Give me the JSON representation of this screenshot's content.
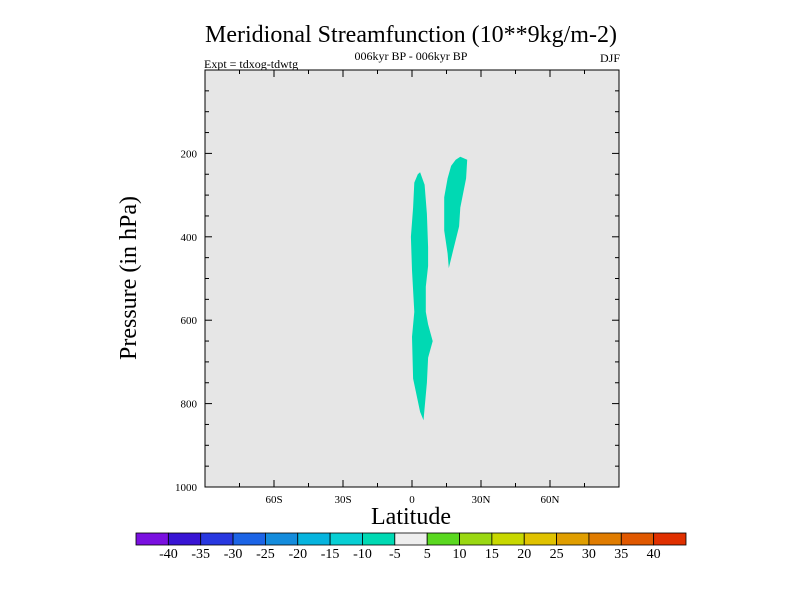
{
  "chart_data": {
    "type": "contour",
    "title": "Meridional Streamfunction (10**9kg/m-2)",
    "subtitle": "006kyr BP - 006kyr BP",
    "left_label": "Expt = tdxog-tdwtg",
    "season": "DJF",
    "xlabel": "Latitude",
    "ylabel": "Pressure (in hPa)",
    "xlim": [
      -90,
      90
    ],
    "ylim": [
      1000,
      0
    ],
    "x_ticks": [
      {
        "v": -60,
        "label": "60S"
      },
      {
        "v": -30,
        "label": "30S"
      },
      {
        "v": 0,
        "label": "0"
      },
      {
        "v": 30,
        "label": "30N"
      },
      {
        "v": 60,
        "label": "60N"
      }
    ],
    "y_ticks": [
      {
        "v": 200,
        "label": "200"
      },
      {
        "v": 400,
        "label": "400"
      },
      {
        "v": 600,
        "label": "600"
      },
      {
        "v": 800,
        "label": "800"
      },
      {
        "v": 1000,
        "label": "1000"
      }
    ],
    "background_color": "#e6e6e6",
    "contour_regions": [
      {
        "name": "region-equatorial",
        "class": "-10 to -5",
        "color": "#00d9b3",
        "points": [
          [
            2.5,
            250
          ],
          [
            3.5,
            245
          ],
          [
            5.5,
            275
          ],
          [
            6.5,
            345
          ],
          [
            7,
            425
          ],
          [
            7,
            470
          ],
          [
            6,
            520
          ],
          [
            6,
            580
          ],
          [
            7,
            610
          ],
          [
            9,
            650
          ],
          [
            7,
            690
          ],
          [
            6.5,
            750
          ],
          [
            5,
            840
          ],
          [
            3.5,
            820
          ],
          [
            0.5,
            740
          ],
          [
            0,
            640
          ],
          [
            1,
            580
          ],
          [
            0,
            480
          ],
          [
            -0.5,
            400
          ],
          [
            0.5,
            330
          ],
          [
            1,
            270
          ]
        ]
      },
      {
        "name": "region-north",
        "class": "-10 to -5",
        "color": "#00d9b3",
        "points": [
          [
            19,
            215
          ],
          [
            21,
            208
          ],
          [
            24,
            215
          ],
          [
            23.5,
            260
          ],
          [
            21,
            330
          ],
          [
            20.5,
            375
          ],
          [
            18,
            430
          ],
          [
            16,
            475
          ],
          [
            15.5,
            440
          ],
          [
            14,
            385
          ],
          [
            14,
            305
          ],
          [
            15.5,
            260
          ],
          [
            17,
            230
          ]
        ]
      }
    ],
    "colorbar": {
      "colors": [
        "#7a10e0",
        "#3814d4",
        "#2838e0",
        "#1c64e6",
        "#148cdc",
        "#06b4de",
        "#08cfd4",
        "#00d9b3",
        "#eeeeee",
        "#5ad820",
        "#9ad812",
        "#c8d800",
        "#e0c200",
        "#e09e00",
        "#e07c00",
        "#e05800",
        "#e03000"
      ],
      "labels": [
        "-40",
        "-35",
        "-30",
        "-25",
        "-20",
        "-15",
        "-10",
        "-5",
        "5",
        "10",
        "15",
        "20",
        "25",
        "30",
        "35",
        "40"
      ]
    }
  }
}
